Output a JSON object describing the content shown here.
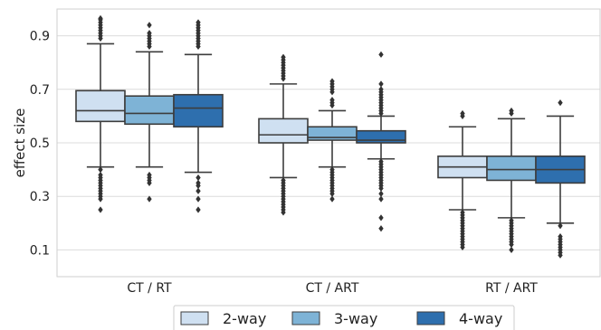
{
  "chart_data": {
    "type": "box",
    "title": "",
    "xlabel": "",
    "ylabel": "effect size",
    "ylim": [
      0.0,
      1.0
    ],
    "yticks": [
      0.1,
      0.3,
      0.5,
      0.7,
      0.9
    ],
    "ytick_labels": [
      "0.1",
      "0.3",
      "0.5",
      "0.7",
      "0.9"
    ],
    "grid": true,
    "legend_position": "bottom",
    "categories": [
      "CT / RT",
      "CT / ART",
      "RT / ART"
    ],
    "series": [
      {
        "name": "2-way",
        "color": "#cfe0f1",
        "boxes": [
          {
            "whislo": 0.41,
            "q1": 0.58,
            "med": 0.62,
            "q3": 0.695,
            "whishi": 0.87,
            "fliers": [
              0.89,
              0.9,
              0.91,
              0.92,
              0.93,
              0.94,
              0.95,
              0.96,
              0.965,
              0.4,
              0.38,
              0.37,
              0.36,
              0.35,
              0.34,
              0.33,
              0.32,
              0.31,
              0.3,
              0.29,
              0.25
            ]
          },
          {
            "whislo": 0.37,
            "q1": 0.5,
            "med": 0.53,
            "q3": 0.59,
            "whishi": 0.72,
            "fliers": [
              0.74,
              0.75,
              0.76,
              0.77,
              0.78,
              0.79,
              0.8,
              0.81,
              0.82,
              0.36,
              0.35,
              0.34,
              0.33,
              0.32,
              0.31,
              0.3,
              0.29,
              0.28,
              0.27,
              0.26,
              0.25,
              0.24
            ]
          },
          {
            "whislo": 0.25,
            "q1": 0.37,
            "med": 0.41,
            "q3": 0.45,
            "whishi": 0.56,
            "fliers": [
              0.6,
              0.61,
              0.24,
              0.23,
              0.22,
              0.21,
              0.2,
              0.19,
              0.18,
              0.17,
              0.16,
              0.15,
              0.14,
              0.13,
              0.12,
              0.11
            ]
          }
        ]
      },
      {
        "name": "3-way",
        "color": "#7eb3d6",
        "boxes": [
          {
            "whislo": 0.41,
            "q1": 0.57,
            "med": 0.61,
            "q3": 0.675,
            "whishi": 0.84,
            "fliers": [
              0.86,
              0.87,
              0.88,
              0.89,
              0.9,
              0.91,
              0.94,
              0.38,
              0.37,
              0.36,
              0.35,
              0.29
            ]
          },
          {
            "whislo": 0.41,
            "q1": 0.51,
            "med": 0.52,
            "q3": 0.56,
            "whishi": 0.62,
            "fliers": [
              0.64,
              0.65,
              0.66,
              0.69,
              0.7,
              0.71,
              0.72,
              0.73,
              0.4,
              0.39,
              0.38,
              0.37,
              0.36,
              0.35,
              0.34,
              0.33,
              0.32,
              0.31,
              0.29
            ]
          },
          {
            "whislo": 0.22,
            "q1": 0.36,
            "med": 0.4,
            "q3": 0.45,
            "whishi": 0.59,
            "fliers": [
              0.61,
              0.62,
              0.21,
              0.2,
              0.19,
              0.18,
              0.17,
              0.16,
              0.15,
              0.14,
              0.13,
              0.12,
              0.1
            ]
          }
        ]
      },
      {
        "name": "4-way",
        "color": "#2e6fae",
        "boxes": [
          {
            "whislo": 0.39,
            "q1": 0.56,
            "med": 0.63,
            "q3": 0.68,
            "whishi": 0.83,
            "fliers": [
              0.86,
              0.87,
              0.88,
              0.89,
              0.9,
              0.91,
              0.92,
              0.93,
              0.94,
              0.95,
              0.37,
              0.35,
              0.34,
              0.32,
              0.29,
              0.25
            ]
          },
          {
            "whislo": 0.44,
            "q1": 0.5,
            "med": 0.51,
            "q3": 0.545,
            "whishi": 0.6,
            "fliers": [
              0.61,
              0.62,
              0.63,
              0.64,
              0.65,
              0.66,
              0.67,
              0.68,
              0.69,
              0.7,
              0.72,
              0.83,
              0.43,
              0.42,
              0.41,
              0.4,
              0.39,
              0.38,
              0.37,
              0.36,
              0.35,
              0.34,
              0.33,
              0.31,
              0.29,
              0.22,
              0.18
            ]
          },
          {
            "whislo": 0.2,
            "q1": 0.35,
            "med": 0.4,
            "q3": 0.45,
            "whishi": 0.6,
            "fliers": [
              0.65,
              0.19,
              0.15,
              0.14,
              0.13,
              0.12,
              0.11,
              0.1,
              0.09,
              0.08
            ]
          }
        ]
      }
    ]
  }
}
